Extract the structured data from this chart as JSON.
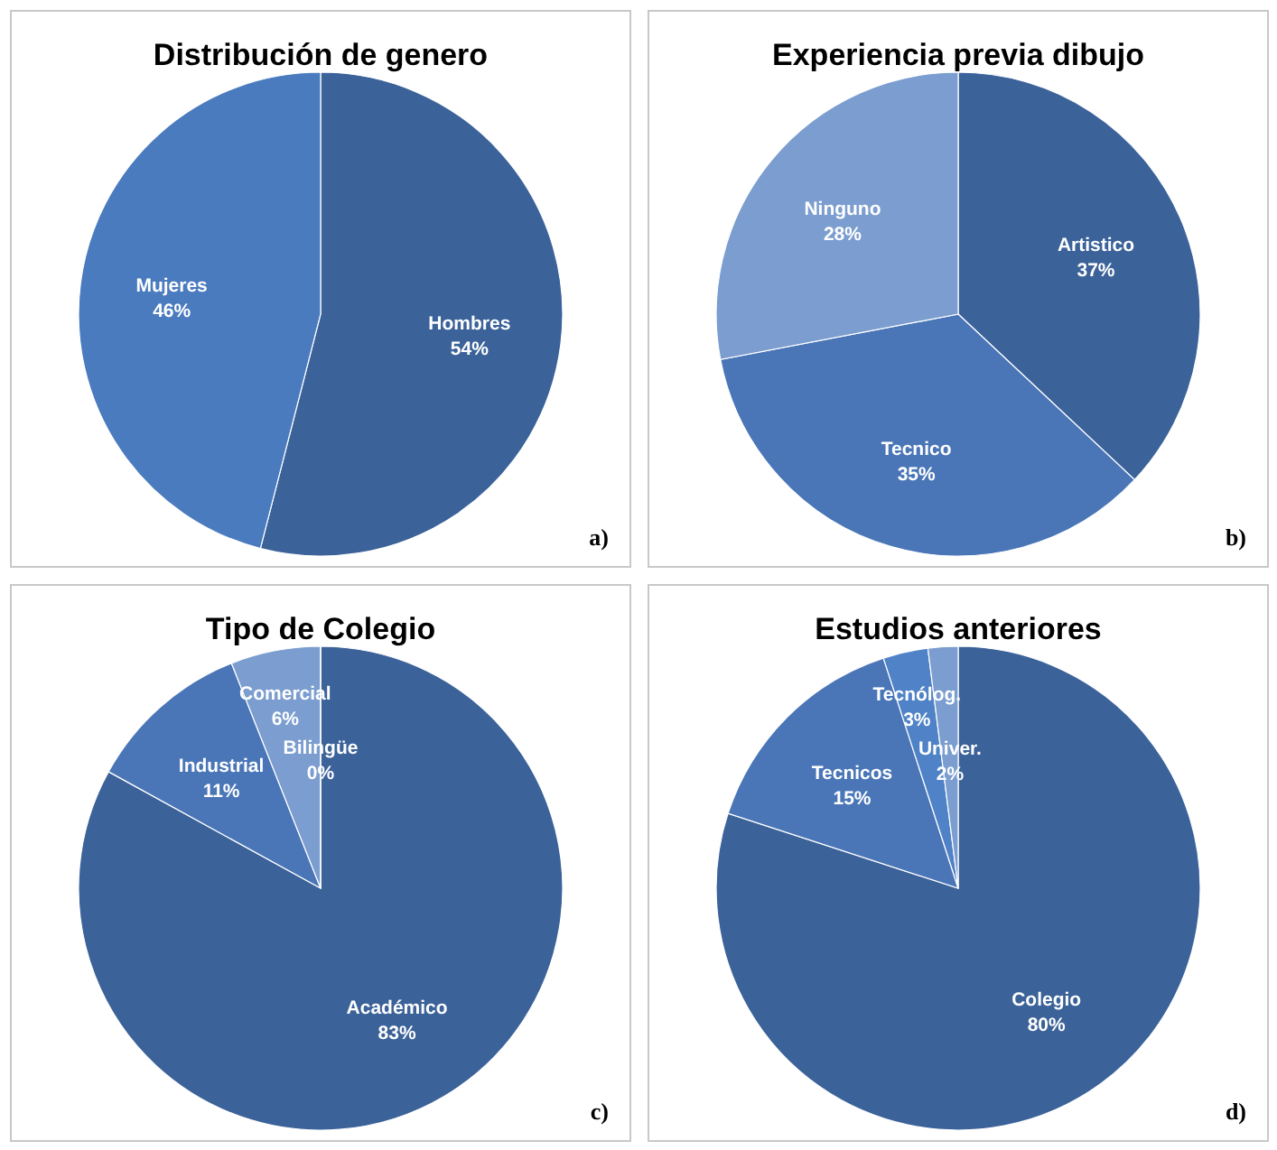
{
  "chart_data": [
    {
      "type": "pie",
      "title": "Distribución de genero",
      "categories": [
        "Hombres",
        "Mujeres"
      ],
      "values": [
        54,
        46
      ],
      "value_labels": [
        "54%",
        "46%"
      ],
      "colors": [
        "#3b6299",
        "#4a7bbf"
      ],
      "legend": false,
      "annotations": [
        "a)"
      ]
    },
    {
      "type": "pie",
      "title": "Experiencia previa dibujo",
      "categories": [
        "Artistico",
        "Tecnico",
        "Ninguno"
      ],
      "values": [
        37,
        35,
        28
      ],
      "value_labels": [
        "37%",
        "35%",
        "28%"
      ],
      "colors": [
        "#3b6299",
        "#4a76b8",
        "#7b9dcf"
      ],
      "legend": false,
      "annotations": [
        "b)"
      ]
    },
    {
      "type": "pie",
      "title": "Tipo de Colegio",
      "categories": [
        "Académico",
        "Industrial",
        "Comercial",
        "Bilingüe"
      ],
      "values": [
        83,
        11,
        6,
        0
      ],
      "value_labels": [
        "83%",
        "11%",
        "6%",
        "0%"
      ],
      "colors": [
        "#3b6299",
        "#4a76b8",
        "#7b9dcf",
        "#a0b8de"
      ],
      "legend": false,
      "annotations": [
        "c)"
      ]
    },
    {
      "type": "pie",
      "title": "Estudios anteriores",
      "categories": [
        "Colegio",
        "Tecnicos",
        "Tecnólog.",
        "Univer."
      ],
      "values": [
        80,
        15,
        3,
        2
      ],
      "value_labels": [
        "80%",
        "15%",
        "3%",
        "2%"
      ],
      "colors": [
        "#3b6299",
        "#4a76b8",
        "#4f82c6",
        "#7b9dcf"
      ],
      "legend": false,
      "annotations": [
        "d)"
      ]
    }
  ]
}
